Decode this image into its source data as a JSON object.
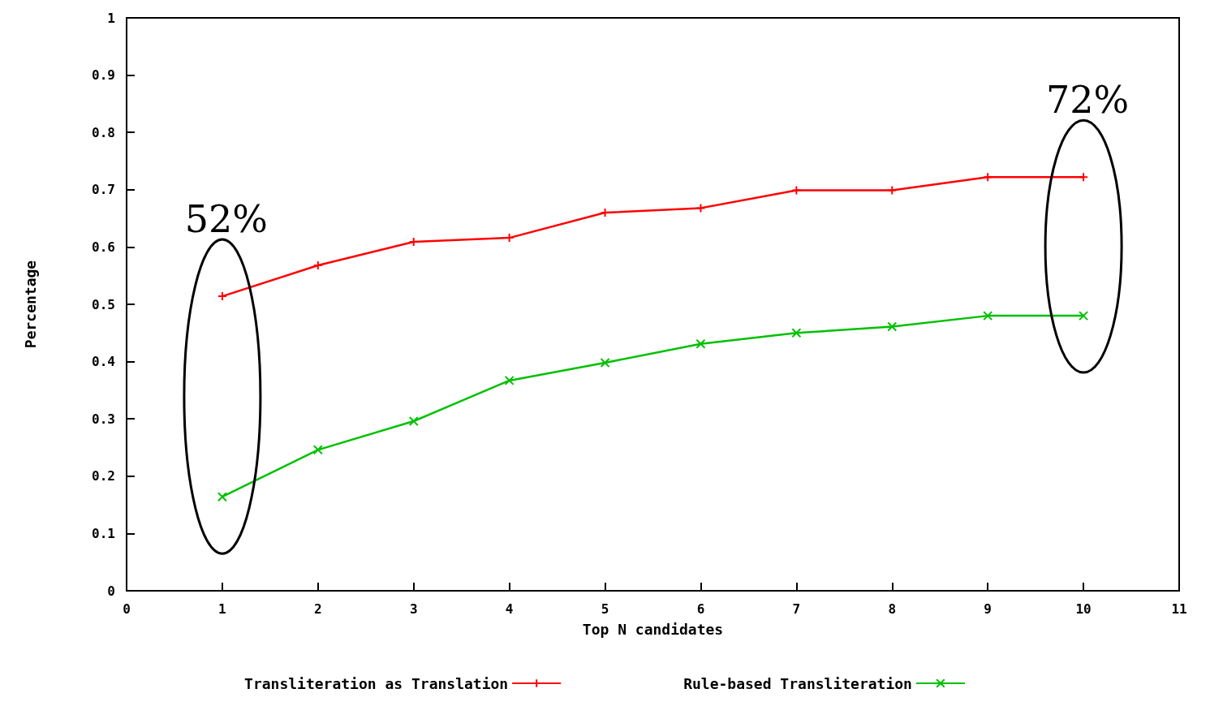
{
  "chart_data": {
    "type": "line",
    "xlabel": "Top N candidates",
    "ylabel": "Percentage",
    "x": [
      1,
      2,
      3,
      4,
      5,
      6,
      7,
      8,
      9,
      10
    ],
    "xlim": [
      0,
      11
    ],
    "xticks": [
      0,
      1,
      2,
      3,
      4,
      5,
      6,
      7,
      8,
      9,
      10,
      11
    ],
    "ylim": [
      0,
      1
    ],
    "yticks": [
      0,
      0.1,
      0.2,
      0.3,
      0.4,
      0.5,
      0.6,
      0.7,
      0.8,
      0.9,
      1
    ],
    "series": [
      {
        "name": "Transliteration as Translation",
        "color": "#ff0000",
        "marker": "cross",
        "values": [
          0.514,
          0.568,
          0.609,
          0.616,
          0.66,
          0.668,
          0.699,
          0.699,
          0.722,
          0.722
        ]
      },
      {
        "name": "Rule-based Transliteration",
        "color": "#00c000",
        "marker": "x",
        "values": [
          0.164,
          0.246,
          0.296,
          0.367,
          0.398,
          0.431,
          0.45,
          0.461,
          0.48,
          0.48
        ]
      }
    ],
    "annotations": [
      {
        "text": "52%",
        "x": 1,
        "y": 0.514
      },
      {
        "text": "72%",
        "x": 10,
        "y": 0.722
      }
    ],
    "grid": false,
    "legend": "bottom",
    "line_style": "solid"
  }
}
